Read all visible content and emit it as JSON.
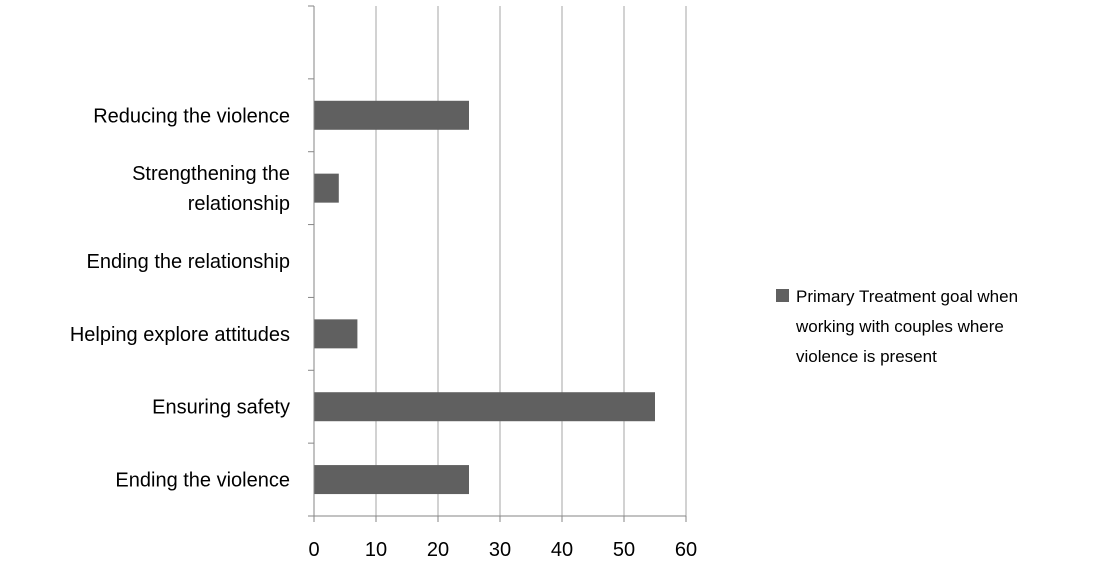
{
  "chart_data": {
    "type": "bar",
    "orientation": "horizontal",
    "categories": [
      [
        "Ending the violence"
      ],
      [
        "Ensuring safety"
      ],
      [
        "Helping explore  attitudes"
      ],
      [
        "Ending the relationship"
      ],
      [
        "Strengthening the",
        "relationship"
      ],
      [
        "Reducing the violence"
      ]
    ],
    "empty_slot_at_top": true,
    "series": [
      {
        "name_lines": [
          "Primary Treatment goal when",
          "working with couples where",
          "violence is present"
        ],
        "values": [
          25,
          55,
          7,
          0,
          4,
          25
        ],
        "color": "#606060"
      }
    ],
    "xlim": [
      0,
      60
    ],
    "xticks": [
      0,
      10,
      20,
      30,
      40,
      50,
      60
    ],
    "grid": "vertical",
    "legend_position": "right",
    "title": "",
    "xlabel": "",
    "ylabel": ""
  }
}
